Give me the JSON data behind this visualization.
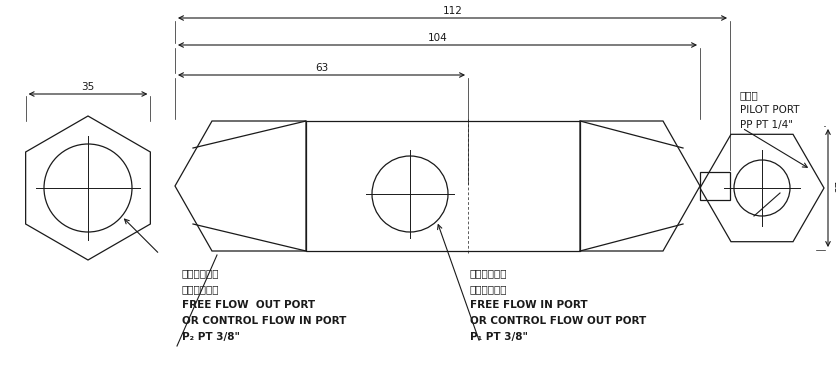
{
  "bg_color": "#ffffff",
  "line_color": "#1a1a1a",
  "fig_width": 8.36,
  "fig_height": 3.71,
  "dpi": 100,
  "labels": {
    "pilot_port_zh": "引導口",
    "pilot_port_en": "PILOT PORT",
    "pilot_port_code": "PP PT 1/4\"",
    "left_zh1": "自由油流出口",
    "left_zh2": "控制油流入口",
    "left_en1": "FREE FLOW  OUT PORT",
    "left_en2": "OR CONTROL FLOW IN PORT",
    "left_code": "P₂ PT 3/8\"",
    "right_zh1": "自由油流入口",
    "right_zh2": "控制油流出口",
    "right_en1": "FREE FLOW IN PORT",
    "right_en2": "OR CONTROL FLOW OUT PORT",
    "right_code": "P₁ PT 3/8\""
  }
}
